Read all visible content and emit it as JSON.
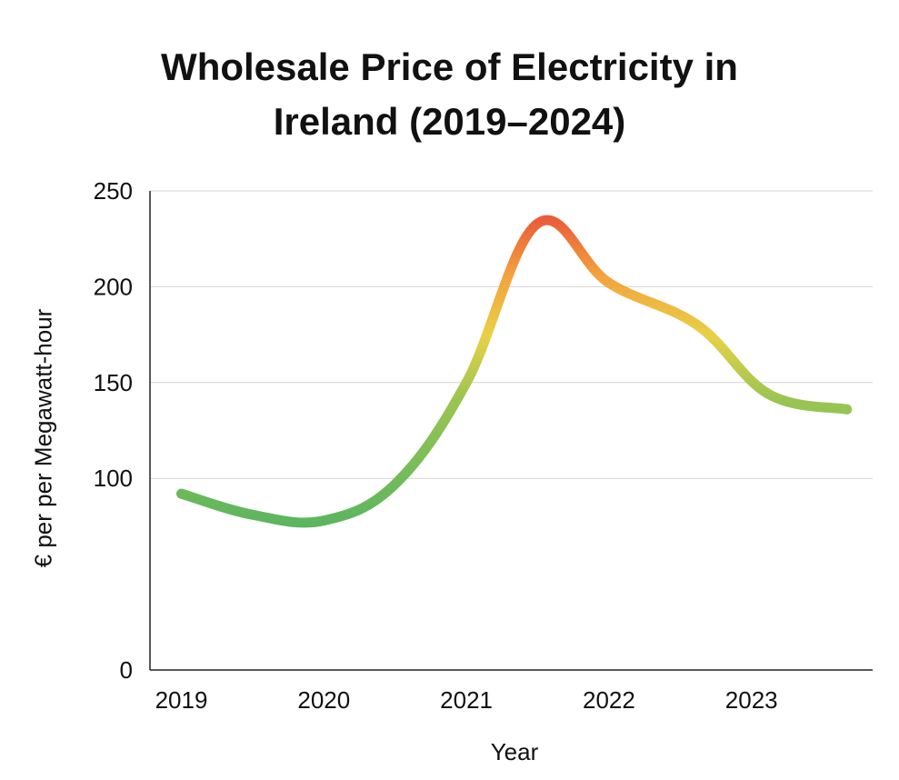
{
  "chart_data": {
    "type": "line",
    "title_lines": [
      "Wholesale Price of Electricity in",
      "Ireland (2019–2024)"
    ],
    "xlabel": "Year",
    "ylabel": "€ per per Megawatt-hour",
    "ylim": [
      0,
      250
    ],
    "yticks": [
      250,
      200,
      150,
      100,
      0
    ],
    "xlim": [
      2018.78,
      2023.85
    ],
    "xticks": [
      2019,
      2020,
      2021,
      2022,
      2023
    ],
    "grid": true,
    "series": [
      {
        "name": "Wholesale price",
        "x": [
          2019.0,
          2019.5,
          2020.0,
          2020.5,
          2021.0,
          2021.5,
          2022.0,
          2022.62,
          2023.12,
          2023.67
        ],
        "y": [
          92,
          81,
          78,
          97,
          150,
          233,
          202,
          180,
          144,
          136
        ]
      }
    ],
    "colors": {
      "low": "#5bb55f",
      "mid": "#e8d146",
      "high": "#ea5d3a",
      "axis": "#222222",
      "grid": "#d4d4d4"
    }
  }
}
